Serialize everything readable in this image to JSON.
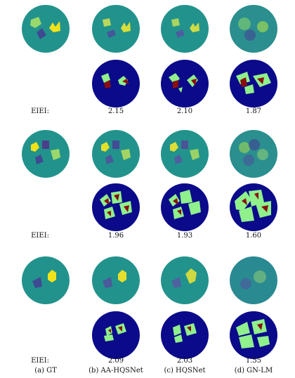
{
  "row_label": "EIEI:",
  "captions": [
    "(a) GT",
    "(b) AA-HQSNet",
    "(c) HQSNet",
    "(d) GN-LM"
  ],
  "rows": [
    {
      "values": [
        "2.15",
        "2.10",
        "1.87"
      ]
    },
    {
      "values": [
        "1.96",
        "1.93",
        "1.60"
      ]
    },
    {
      "values": [
        "2.09",
        "2.03",
        "1.55"
      ]
    }
  ],
  "colors": {
    "teal": "#22938c",
    "navy": "#0a0a8a",
    "yellow": "#f2e21a",
    "purple": "#3f4a93",
    "green": "#8ff08c",
    "red": "#8a0f0f",
    "light_green": "#7fd08a",
    "dark_teal": "#2a7e8f"
  }
}
